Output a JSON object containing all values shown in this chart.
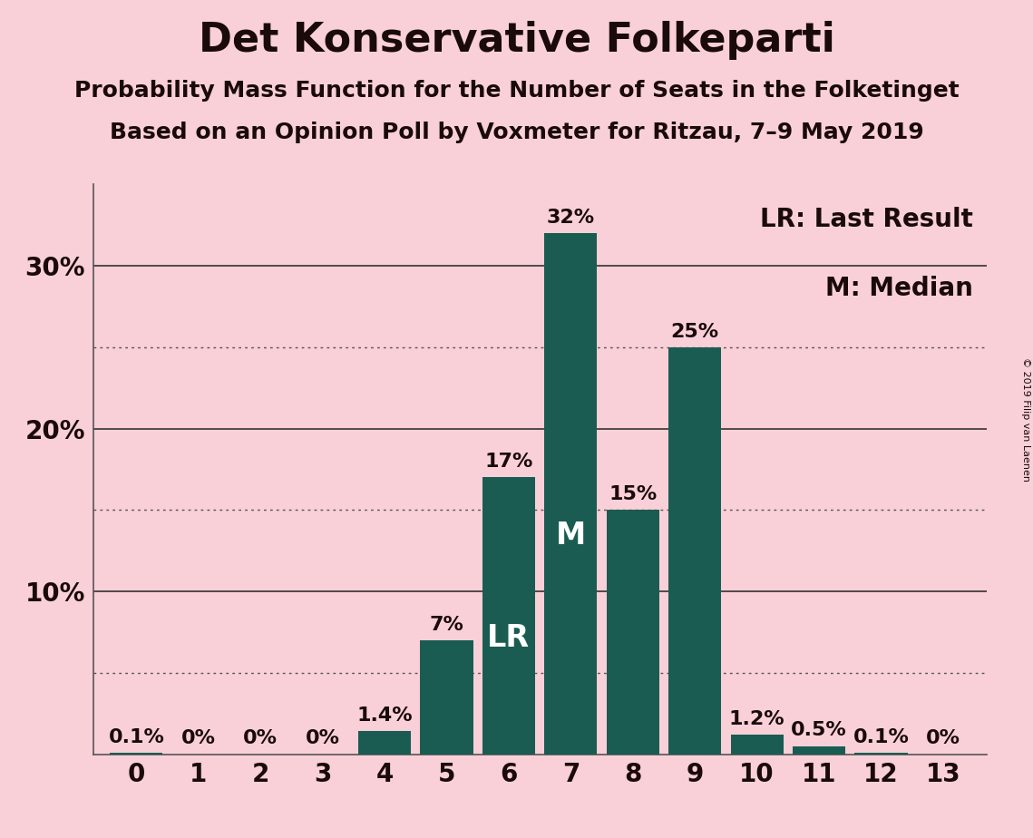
{
  "title": "Det Konservative Folkeparti",
  "subtitle1": "Probability Mass Function for the Number of Seats in the Folketinget",
  "subtitle2": "Based on an Opinion Poll by Voxmeter for Ritzau, 7–9 May 2019",
  "copyright": "© 2019 Filip van Laenen",
  "categories": [
    0,
    1,
    2,
    3,
    4,
    5,
    6,
    7,
    8,
    9,
    10,
    11,
    12,
    13
  ],
  "values": [
    0.1,
    0.0,
    0.0,
    0.0,
    1.4,
    7.0,
    17.0,
    32.0,
    15.0,
    25.0,
    1.2,
    0.5,
    0.1,
    0.0
  ],
  "labels": [
    "0.1%",
    "0%",
    "0%",
    "0%",
    "1.4%",
    "7%",
    "17%",
    "32%",
    "15%",
    "25%",
    "1.2%",
    "0.5%",
    "0.1%",
    "0%"
  ],
  "bar_color": "#1a5c52",
  "background_color": "#f9d0d8",
  "text_color": "#1a0a0a",
  "lr_seat": 6,
  "median_seat": 7,
  "ylim": [
    0,
    35
  ],
  "ytick_values": [
    10,
    20,
    30
  ],
  "ytick_labels": [
    "10%",
    "20%",
    "30%"
  ],
  "solid_grid": [
    10,
    20,
    30
  ],
  "dotted_grid": [
    5,
    15,
    25
  ],
  "legend_lr": "LR: Last Result",
  "legend_m": "M: Median",
  "title_fontsize": 32,
  "subtitle_fontsize": 18,
  "tick_fontsize": 20,
  "label_fontsize": 16,
  "legend_fontsize": 20,
  "lr_label_fontsize": 24,
  "m_label_fontsize": 24
}
